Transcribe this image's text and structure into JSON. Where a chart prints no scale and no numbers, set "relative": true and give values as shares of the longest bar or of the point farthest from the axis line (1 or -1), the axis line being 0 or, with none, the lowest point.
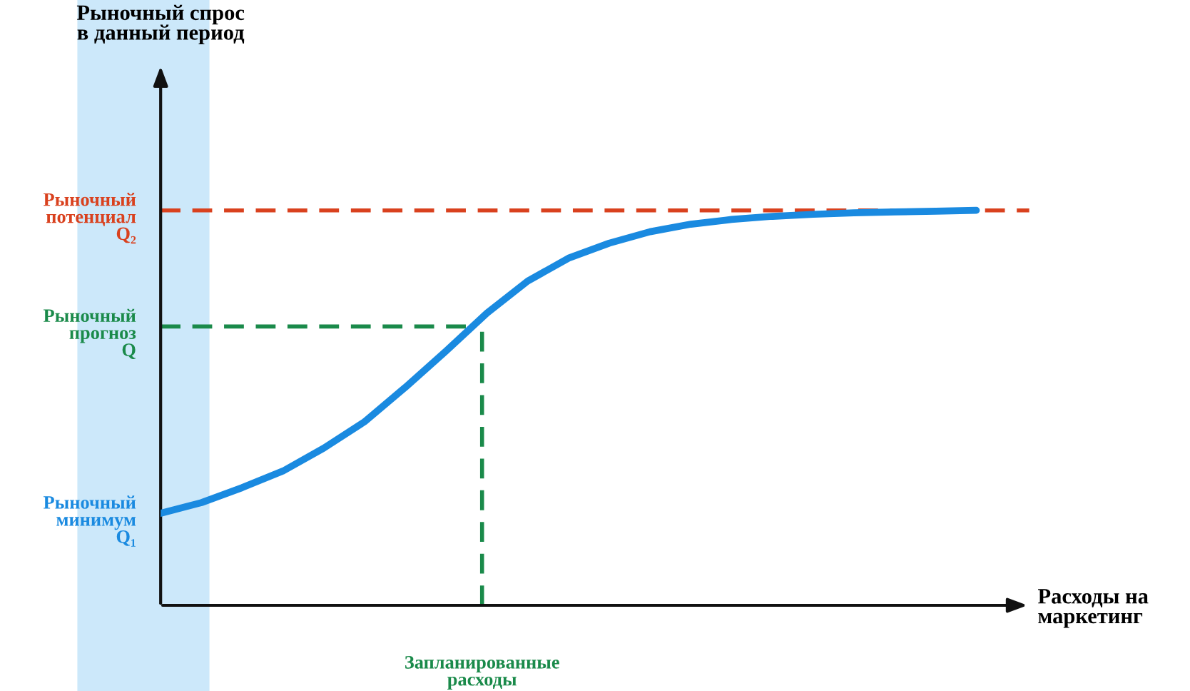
{
  "chart_data": {
    "type": "line",
    "relative": true,
    "xlabel": "Расходы на\nмаркетинг",
    "categories": [
      null,
      null,
      null,
      null,
      null,
      null,
      null,
      null,
      null,
      null,
      null,
      null,
      null,
      null,
      null,
      null,
      null,
      null,
      null,
      null,
      null
    ],
    "series": [
      {
        "color": "#1a8ae0",
        "values": [
          0.233,
          0.26,
          0.298,
          0.34,
          0.398,
          0.465,
          0.552,
          0.644,
          0.74,
          0.821,
          0.879,
          0.917,
          0.946,
          0.965,
          0.977,
          0.985,
          0.99,
          0.994,
          0.996,
          0.998,
          1.0
        ]
      }
    ],
    "ref_lines": [
      {
        "axis": "y",
        "value": 1.0,
        "label": "Рыночный\nпотенциал\nQ₂",
        "color": "#d9411e",
        "line_style": "dashed"
      },
      {
        "axis": "y",
        "value": 0.706,
        "label": "Рыночный\nпрогноз\nQ",
        "color": "#1a8a4a",
        "line_style": "dashed"
      }
    ],
    "annotations": [
      "Рыночный\nминимум\nQ₁",
      "Запланированные\nрасходы",
      "Рыночный спрос\nв данный период"
    ],
    "grid": false,
    "legend": false,
    "marker": "none",
    "line_style": "solid"
  }
}
